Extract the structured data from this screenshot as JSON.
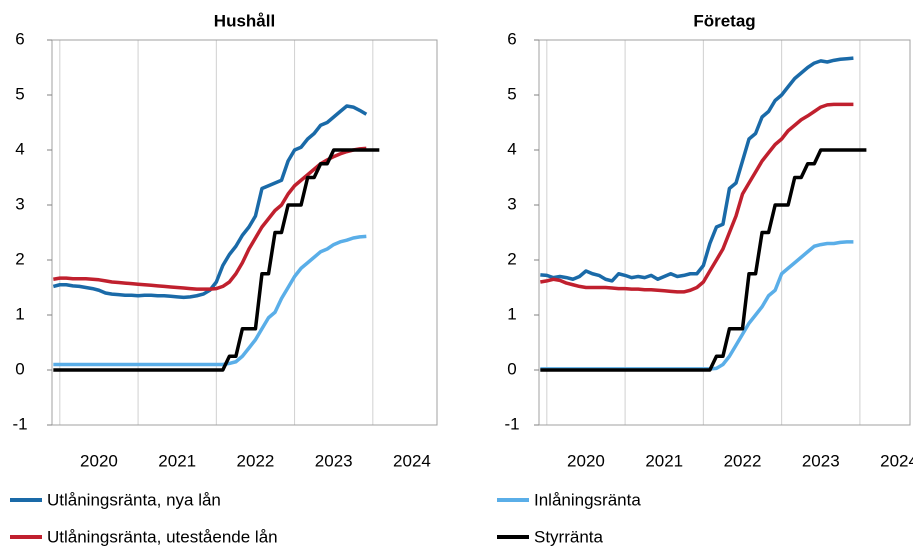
{
  "chart_data": [
    {
      "type": "line",
      "title": "Hushåll",
      "xlim": [
        2019.9,
        2024.82
      ],
      "xticks": [
        2020,
        2021,
        2022,
        2023,
        2024
      ],
      "ylim": [
        -1,
        6
      ],
      "yticks": [
        -1,
        0,
        1,
        2,
        3,
        4,
        5,
        6
      ],
      "grid": true,
      "x": [
        2019.917,
        2020,
        2020.083,
        2020.167,
        2020.25,
        2020.333,
        2020.417,
        2020.5,
        2020.583,
        2020.667,
        2020.75,
        2020.833,
        2020.917,
        2021,
        2021.083,
        2021.167,
        2021.25,
        2021.333,
        2021.417,
        2021.5,
        2021.583,
        2021.667,
        2021.75,
        2021.833,
        2021.917,
        2022,
        2022.083,
        2022.167,
        2022.25,
        2022.333,
        2022.417,
        2022.5,
        2022.583,
        2022.667,
        2022.75,
        2022.833,
        2022.917,
        2023,
        2023.083,
        2023.167,
        2023.25,
        2023.333,
        2023.417,
        2023.5,
        2023.583,
        2023.667,
        2023.75,
        2023.833,
        2023.917,
        2024,
        2024.083
      ],
      "series": [
        {
          "name": "Utlåningsränta, nya lån",
          "color": "#1a6aa8",
          "values": [
            1.52,
            1.55,
            1.55,
            1.53,
            1.52,
            1.5,
            1.48,
            1.45,
            1.4,
            1.38,
            1.37,
            1.36,
            1.36,
            1.35,
            1.36,
            1.36,
            1.35,
            1.35,
            1.34,
            1.33,
            1.32,
            1.33,
            1.35,
            1.38,
            1.45,
            1.6,
            1.9,
            2.1,
            2.25,
            2.45,
            2.6,
            2.8,
            3.3,
            3.35,
            3.4,
            3.45,
            3.8,
            4.0,
            4.05,
            4.2,
            4.3,
            4.45,
            4.5,
            4.6,
            4.7,
            4.8,
            4.78,
            4.72,
            4.65,
            null,
            null
          ]
        },
        {
          "name": "Utlåningsränta, utestående lån",
          "color": "#c0202e",
          "values": [
            1.65,
            1.67,
            1.67,
            1.66,
            1.66,
            1.66,
            1.65,
            1.64,
            1.62,
            1.6,
            1.59,
            1.58,
            1.57,
            1.56,
            1.55,
            1.54,
            1.53,
            1.52,
            1.51,
            1.5,
            1.49,
            1.48,
            1.47,
            1.47,
            1.47,
            1.48,
            1.52,
            1.6,
            1.75,
            1.95,
            2.2,
            2.4,
            2.6,
            2.75,
            2.9,
            3.0,
            3.2,
            3.35,
            3.45,
            3.55,
            3.65,
            3.75,
            3.82,
            3.88,
            3.93,
            3.97,
            4.0,
            4.02,
            4.03,
            null,
            null
          ]
        },
        {
          "name": "Inlåningsränta",
          "color": "#5aaee8",
          "values": [
            0.1,
            0.1,
            0.1,
            0.1,
            0.1,
            0.1,
            0.1,
            0.1,
            0.1,
            0.1,
            0.1,
            0.1,
            0.1,
            0.1,
            0.1,
            0.1,
            0.1,
            0.1,
            0.1,
            0.1,
            0.1,
            0.1,
            0.1,
            0.1,
            0.1,
            0.1,
            0.1,
            0.12,
            0.15,
            0.25,
            0.4,
            0.55,
            0.75,
            0.95,
            1.05,
            1.3,
            1.5,
            1.7,
            1.85,
            1.95,
            2.05,
            2.15,
            2.2,
            2.28,
            2.33,
            2.36,
            2.4,
            2.42,
            2.43,
            null,
            null
          ]
        },
        {
          "name": "Styrränta",
          "color": "#000000",
          "values": [
            0,
            0,
            0,
            0,
            0,
            0,
            0,
            0,
            0,
            0,
            0,
            0,
            0,
            0,
            0,
            0,
            0,
            0,
            0,
            0,
            0,
            0,
            0,
            0,
            0,
            0,
            0,
            0.25,
            0.25,
            0.75,
            0.75,
            0.75,
            1.75,
            1.75,
            2.5,
            2.5,
            3.0,
            3.0,
            3.0,
            3.5,
            3.5,
            3.75,
            3.75,
            4.0,
            4.0,
            4.0,
            4.0,
            4.0,
            4.0,
            4.0,
            4.0
          ]
        }
      ]
    },
    {
      "type": "line",
      "title": "Företag",
      "xlim": [
        2019.9,
        2024.64
      ],
      "xticks": [
        2020,
        2021,
        2022,
        2023,
        2024
      ],
      "ylim": [
        -1,
        6
      ],
      "yticks": [
        -1,
        0,
        1,
        2,
        3,
        4,
        5,
        6
      ],
      "grid": true,
      "x": [
        2019.917,
        2020,
        2020.083,
        2020.167,
        2020.25,
        2020.333,
        2020.417,
        2020.5,
        2020.583,
        2020.667,
        2020.75,
        2020.833,
        2020.917,
        2021,
        2021.083,
        2021.167,
        2021.25,
        2021.333,
        2021.417,
        2021.5,
        2021.583,
        2021.667,
        2021.75,
        2021.833,
        2021.917,
        2022,
        2022.083,
        2022.167,
        2022.25,
        2022.333,
        2022.417,
        2022.5,
        2022.583,
        2022.667,
        2022.75,
        2022.833,
        2022.917,
        2023,
        2023.083,
        2023.167,
        2023.25,
        2023.333,
        2023.417,
        2023.5,
        2023.583,
        2023.667,
        2023.75,
        2023.833,
        2023.917,
        2024,
        2024.083
      ],
      "series": [
        {
          "color": "#1a6aa8",
          "values": [
            1.73,
            1.72,
            1.68,
            1.7,
            1.68,
            1.65,
            1.7,
            1.8,
            1.75,
            1.72,
            1.65,
            1.62,
            1.75,
            1.72,
            1.68,
            1.7,
            1.68,
            1.72,
            1.65,
            1.7,
            1.75,
            1.7,
            1.72,
            1.75,
            1.75,
            1.9,
            2.3,
            2.6,
            2.65,
            3.3,
            3.4,
            3.8,
            4.2,
            4.3,
            4.6,
            4.7,
            4.9,
            5.0,
            5.15,
            5.3,
            5.4,
            5.5,
            5.58,
            5.62,
            5.6,
            5.63,
            5.65,
            5.66,
            5.67,
            null,
            null
          ]
        },
        {
          "color": "#c0202e",
          "values": [
            1.6,
            1.62,
            1.65,
            1.63,
            1.58,
            1.55,
            1.52,
            1.5,
            1.5,
            1.5,
            1.5,
            1.49,
            1.48,
            1.48,
            1.47,
            1.47,
            1.46,
            1.46,
            1.45,
            1.44,
            1.43,
            1.42,
            1.42,
            1.45,
            1.5,
            1.6,
            1.8,
            2.0,
            2.2,
            2.5,
            2.8,
            3.2,
            3.4,
            3.6,
            3.8,
            3.95,
            4.1,
            4.2,
            4.35,
            4.45,
            4.55,
            4.62,
            4.7,
            4.78,
            4.82,
            4.83,
            4.83,
            4.83,
            4.83,
            null,
            null
          ]
        },
        {
          "color": "#5aaee8",
          "values": [
            0.02,
            0.02,
            0.02,
            0.02,
            0.02,
            0.02,
            0.02,
            0.02,
            0.02,
            0.02,
            0.02,
            0.02,
            0.02,
            0.02,
            0.02,
            0.02,
            0.02,
            0.02,
            0.02,
            0.02,
            0.02,
            0.02,
            0.02,
            0.02,
            0.02,
            0.02,
            0.02,
            0.03,
            0.1,
            0.25,
            0.45,
            0.65,
            0.85,
            1.0,
            1.15,
            1.35,
            1.45,
            1.75,
            1.85,
            1.95,
            2.05,
            2.15,
            2.25,
            2.28,
            2.3,
            2.3,
            2.32,
            2.33,
            2.33,
            null,
            null
          ]
        },
        {
          "color": "#000000",
          "values": [
            0,
            0,
            0,
            0,
            0,
            0,
            0,
            0,
            0,
            0,
            0,
            0,
            0,
            0,
            0,
            0,
            0,
            0,
            0,
            0,
            0,
            0,
            0,
            0,
            0,
            0,
            0,
            0.25,
            0.25,
            0.75,
            0.75,
            0.75,
            1.75,
            1.75,
            2.5,
            2.5,
            3.0,
            3.0,
            3.0,
            3.5,
            3.5,
            3.75,
            3.75,
            4.0,
            4.0,
            4.0,
            4.0,
            4.0,
            4.0,
            4.0,
            4.0
          ]
        }
      ]
    }
  ]
}
